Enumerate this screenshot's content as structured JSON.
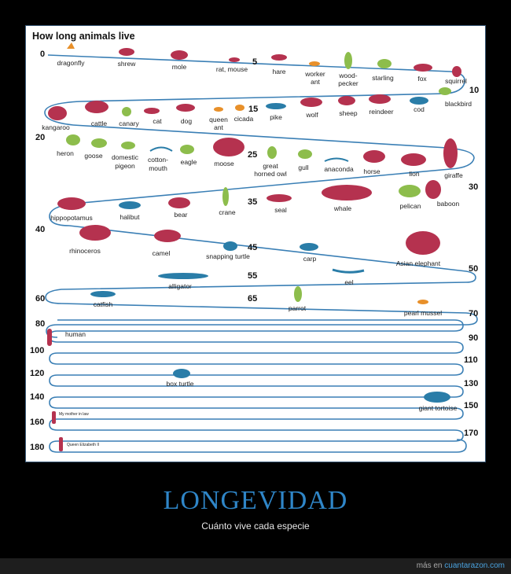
{
  "chart": {
    "title": "How long animals live",
    "ticks": [
      "0",
      "5",
      "10",
      "15",
      "20",
      "25",
      "30",
      "35",
      "40",
      "45",
      "50",
      "55",
      "60",
      "65",
      "70",
      "80",
      "90",
      "100",
      "110",
      "120",
      "130",
      "140",
      "150",
      "160",
      "170",
      "180"
    ],
    "animals": {
      "dragonfly": "dragonfly",
      "shrew": "shrew",
      "mole": "mole",
      "rat_mouse": "rat, mouse",
      "hare": "hare",
      "worker_ant_1": "worker",
      "worker_ant_2": "ant",
      "woodpecker_1": "wood-",
      "woodpecker_2": "pecker",
      "starling": "starling",
      "fox": "fox",
      "squirrel": "squirrel",
      "blackbird": "blackbird",
      "kangaroo": "kangaroo",
      "cattle": "cattle",
      "canary": "canary",
      "cat": "cat",
      "dog": "dog",
      "queen_ant_1": "queen",
      "queen_ant_2": "ant",
      "cicada": "cicada",
      "pike": "pike",
      "wolf": "wolf",
      "sheep": "sheep",
      "reindeer": "reindeer",
      "cod": "cod",
      "heron": "heron",
      "goose": "goose",
      "pigeon_1": "domestic",
      "pigeon_2": "pigeon",
      "cottonmouth_1": "cotton-",
      "cottonmouth_2": "mouth",
      "eagle": "eagle",
      "moose": "moose",
      "owl_1": "great",
      "owl_2": "horned owl",
      "gull": "gull",
      "anaconda": "anaconda",
      "horse": "horse",
      "lion": "lion",
      "giraffe": "giraffe",
      "hippopotamus": "hippopotamus",
      "halibut": "halibut",
      "bear": "bear",
      "crane": "crane",
      "seal": "seal",
      "whale": "whale",
      "pelican": "pelican",
      "baboon": "baboon",
      "rhinoceros": "rhinoceros",
      "camel": "camel",
      "snapping_turtle": "snapping turtle",
      "carp": "carp",
      "asian_elephant": "Asian elephant",
      "alligator": "alligator",
      "eel": "eel",
      "catfish": "catfish",
      "parrot": "parrot",
      "pearl_mussel": "pearl mussel",
      "human": "human",
      "box_turtle": "box turtle",
      "giant_tortoise": "giant tortoise",
      "mother_in_law": "My mother in law",
      "queen_elizabeth": "Queen Elizabeth II"
    },
    "colors": {
      "mammal": "#b5324f",
      "bird": "#8dbd4c",
      "fish": "#2a7da8",
      "insect": "#e8902a",
      "track": "#3a7fb5"
    }
  },
  "poster": {
    "title": "LONGEVIDAD",
    "subtitle": "Cuánto vive cada especie"
  },
  "footer": {
    "prefix": "más en ",
    "link": "cuantarazon.com"
  }
}
